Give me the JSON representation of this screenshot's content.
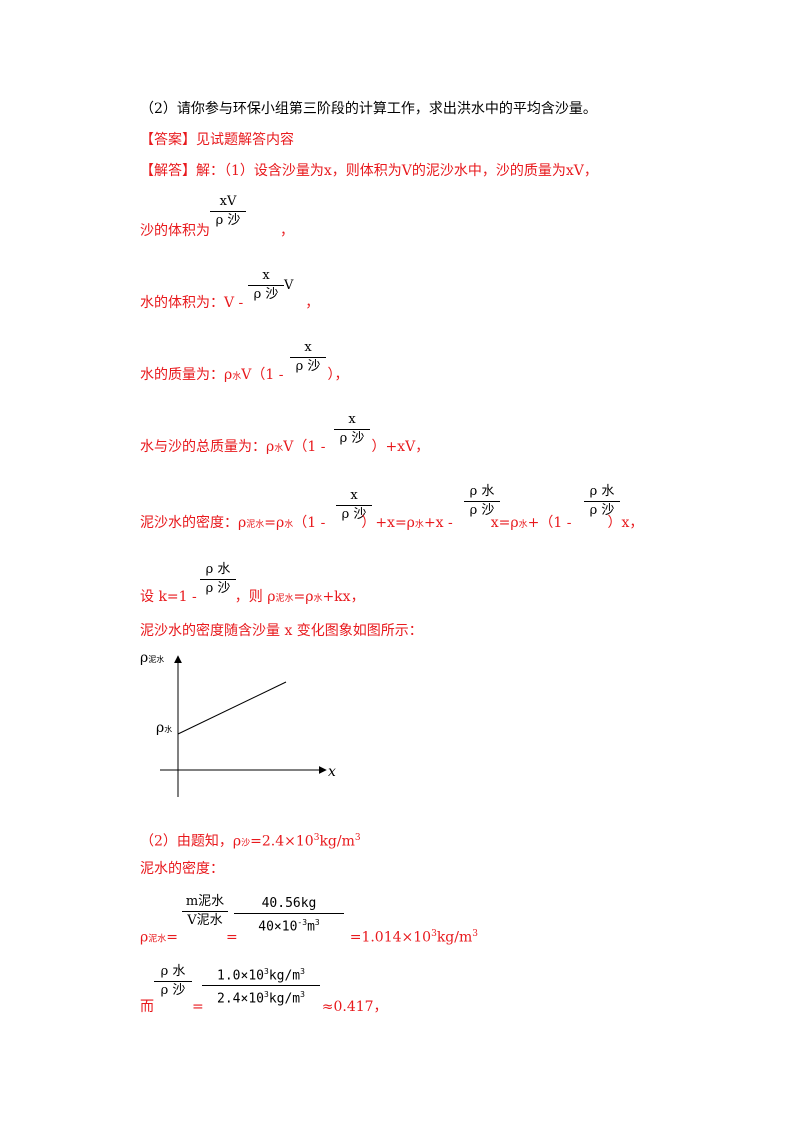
{
  "lines": {
    "q2": "（2）请你参与环保小组第三阶段的计算工作，求出洪水中的平均含沙量。",
    "answer_tag": "【答案】",
    "answer_text": "见试题解答内容",
    "solution_tag": "【解答】",
    "solution_text": "解：（1）设含沙量为x，则体积为V的泥沙水中，沙的质量为xV，",
    "sand_volume": "沙的体积为",
    "water_volume": "水的体积为：V -",
    "water_mass_a": "水的质量为：ρ",
    "water_mass_b": "V（1 -",
    "water_mass_c": "），",
    "total_mass_a": "水与沙的总质量为：ρ",
    "total_mass_b": "V（1 -",
    "total_mass_c": "）+xV，",
    "density_a": "泥沙水的密度：ρ",
    "density_b": "=ρ",
    "density_c": "（1 -",
    "density_d": "）+x=ρ",
    "density_e": "+x -",
    "density_f": "x=ρ",
    "density_g": "+（1 -",
    "density_h": "）x，",
    "setk_a": "设 k=1 -",
    "setk_b": "，则 ρ",
    "setk_c": "=ρ",
    "setk_d": "+kx，",
    "graph_caption": "泥沙水的密度随含沙量 x 变化图象如图所示：",
    "p2_line": "（2）由题知，ρ",
    "p2_val": "=2.4×10",
    "p2_unit": "kg/m",
    "mud_density": "泥水的密度：",
    "rho_mud_a": "ρ",
    "rho_mud_eq": "=",
    "rho_mud_res": "=1.014×10",
    "rho_mud_unit": "kg/m",
    "ratio_a": "而",
    "ratio_eq": "=",
    "ratio_res": "≈0.417，",
    "comma": "，",
    "comma2": "，",
    "sup3": "3",
    "sup3b": "3",
    "sup3c": "3",
    "sup3d": "3"
  },
  "subs": {
    "water": "水",
    "sand": "沙",
    "mud_water": "泥水"
  },
  "fractions": {
    "xV": "xV",
    "rho_sand": "ρ 沙",
    "x": "x",
    "V": "V",
    "rho_water": "ρ 水",
    "m_mud": "m泥水",
    "V_mud": "V泥水",
    "num_4056": "40.56kg",
    "den_40": "40×10",
    "den_40_exp": "-3",
    "den_40_unit": "m",
    "den_40_exp2": "3",
    "num_10": "1.0×10",
    "num_10_exp": "3",
    "num_10_unit": "kg/m",
    "num_10_exp2": "3",
    "den_24": "2.4×10",
    "den_24_exp": "3",
    "den_24_unit": "kg/m",
    "den_24_exp2": "3"
  },
  "graph": {
    "y_label": "ρ",
    "y_label_sub": "泥水",
    "intercept_label": "ρ",
    "intercept_sub": "水",
    "x_label": "x"
  }
}
